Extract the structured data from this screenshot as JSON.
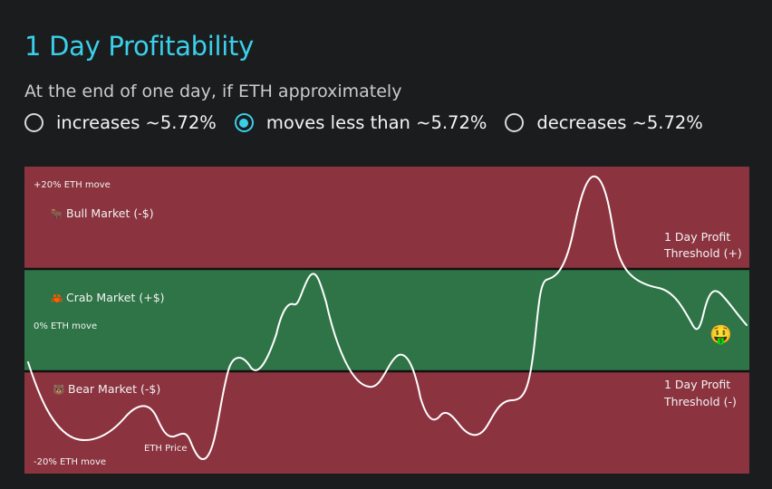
{
  "header": {
    "title": "1 Day Profitability",
    "subtitle": "At the end of one day, if ETH approximately"
  },
  "options": [
    {
      "label": "increases ~5.72%",
      "selected": false
    },
    {
      "label": "moves less than ~5.72%",
      "selected": true
    },
    {
      "label": "decreases ~5.72%",
      "selected": false
    }
  ],
  "chart": {
    "top_label": "+20% ETH move",
    "middle_label": "0% ETH move",
    "bottom_label": "-20% ETH move",
    "bull_label": "Bull Market (-$)",
    "crab_label": "Crab Market (+$)",
    "bear_label": "Bear Market (-$)",
    "bull_icon": "🐂",
    "crab_icon": "🦀",
    "bear_icon": "🐻",
    "threshold_plus_line1": "1 Day Profit",
    "threshold_plus_line2": "Threshold (+)",
    "threshold_minus_line1": "1 Day Profit",
    "threshold_minus_line2": "Threshold (-)",
    "eth_price_label": "ETH Price",
    "end_emoji": "🤑",
    "colors": {
      "loss_zone": "#8c3340",
      "profit_zone": "#2f7447",
      "threshold_line": "#111111",
      "price_line": "#ffffff"
    }
  }
}
